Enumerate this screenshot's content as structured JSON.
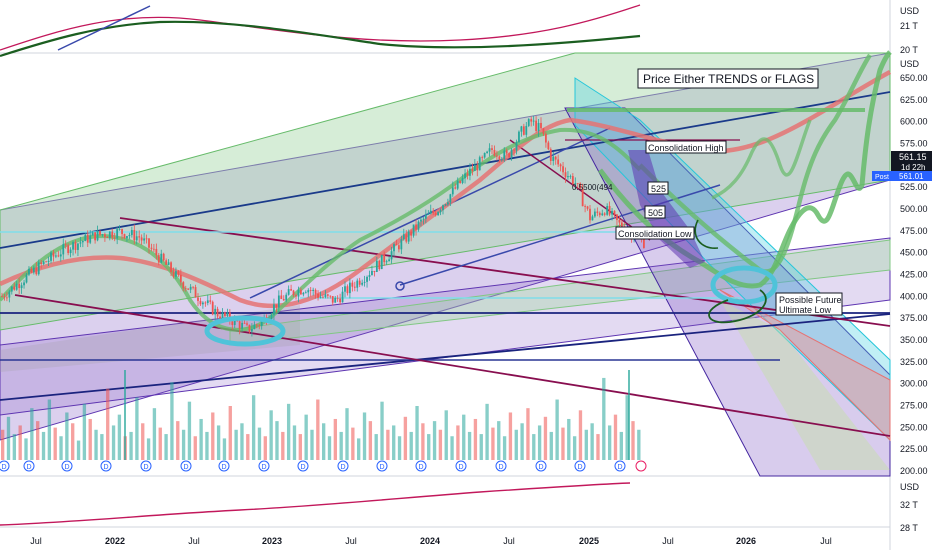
{
  "header": {
    "currency_top": "USD",
    "currency_main": "USD",
    "currency_bottom": "USD"
  },
  "top_panel": {
    "ticks": [
      "21 T",
      "20 T"
    ]
  },
  "bottom_panel": {
    "ticks": [
      "32 T",
      "28 T"
    ]
  },
  "price_badges": {
    "last": "561.15",
    "countdown": "1d 22h",
    "post_label": "Post",
    "post_value": "561.01",
    "last_value": 561.15,
    "post_numeric": 561.01
  },
  "annotations": {
    "title": "Price Either TRENDS or FLAGS",
    "consolidation_high": "Consolidation High",
    "consolidation_low": "Consolidation Low",
    "fib_level": "0.5500(494",
    "level_525": "525",
    "level_505": "505",
    "future_low_line1": "Possible Future",
    "future_low_line2": "Ultimate Low"
  },
  "event_marker": "D",
  "colors": {
    "up": "#26a69a",
    "down": "#ef5350",
    "highlight": "#4fc3d9",
    "green_path": "#66bb6a",
    "purple_fill": "#7e57c2",
    "green_fill": "#a5d6a7",
    "trend_blue": "#1a237e",
    "trend_maroon": "#880e4f",
    "ma_red": "#e57373"
  },
  "chart_data": {
    "type": "candlestick",
    "y_axis": {
      "ticks": [
        650,
        625,
        600,
        575,
        550,
        525,
        500,
        475,
        450,
        425,
        400,
        375,
        350,
        325,
        300,
        275,
        250,
        225,
        200
      ],
      "tick_labels": [
        "650.00",
        "625.00",
        "600.00",
        "575.00",
        "550.00",
        "525.00",
        "500.00",
        "475.00",
        "450.00",
        "425.00",
        "400.00",
        "375.00",
        "350.00",
        "325.00",
        "300.00",
        "275.00",
        "250.00",
        "225.00",
        "200.00"
      ],
      "ylim": [
        196,
        665
      ]
    },
    "x_axis": {
      "labels": [
        {
          "text": "Jul",
          "bold": false
        },
        {
          "text": "2022",
          "bold": true
        },
        {
          "text": "Jul",
          "bold": false
        },
        {
          "text": "2023",
          "bold": true
        },
        {
          "text": "Jul",
          "bold": false
        },
        {
          "text": "2024",
          "bold": true
        },
        {
          "text": "Jul",
          "bold": false
        },
        {
          "text": "2025",
          "bold": true
        },
        {
          "text": "Jul",
          "bold": false
        },
        {
          "text": "2026",
          "bold": true
        },
        {
          "text": "Jul",
          "bold": false
        }
      ]
    },
    "price_path": [
      [
        0,
        400
      ],
      [
        8,
        418
      ],
      [
        18,
        440
      ],
      [
        26,
        455
      ],
      [
        38,
        470
      ],
      [
        48,
        474
      ],
      [
        56,
        468
      ],
      [
        64,
        445
      ],
      [
        72,
        420
      ],
      [
        80,
        400
      ],
      [
        88,
        380
      ],
      [
        96,
        370
      ],
      [
        100,
        362
      ],
      [
        106,
        370
      ],
      [
        112,
        392
      ],
      [
        118,
        404
      ],
      [
        124,
        410
      ],
      [
        130,
        400
      ],
      [
        136,
        395
      ],
      [
        142,
        410
      ],
      [
        150,
        428
      ],
      [
        158,
        448
      ],
      [
        166,
        470
      ],
      [
        172,
        488
      ],
      [
        178,
        500
      ],
      [
        184,
        520
      ],
      [
        190,
        540
      ],
      [
        196,
        555
      ],
      [
        200,
        568
      ],
      [
        206,
        560
      ],
      [
        212,
        588
      ],
      [
        216,
        600
      ],
      [
        220,
        590
      ],
      [
        224,
        560
      ],
      [
        228,
        548
      ],
      [
        234,
        530
      ],
      [
        240,
        490
      ],
      [
        246,
        500
      ],
      [
        252,
        482
      ],
      [
        258,
        470
      ],
      [
        262,
        462
      ]
    ],
    "volume": {
      "values": [
        14,
        20,
        12,
        16,
        10,
        24,
        18,
        13,
        28,
        15,
        11,
        22,
        17,
        9,
        26,
        19,
        14,
        12,
        33,
        16,
        21,
        11,
        13,
        29,
        17,
        10,
        24,
        15,
        12,
        36,
        18,
        14,
        27,
        11,
        19,
        13,
        22,
        16,
        10,
        25,
        14,
        17,
        12,
        30,
        15,
        11,
        23,
        18,
        13,
        26,
        16,
        12,
        21,
        14,
        28,
        17,
        11,
        19,
        13,
        24,
        15,
        10,
        22,
        18,
        12,
        27,
        14,
        16,
        11,
        20,
        13,
        25,
        17,
        12,
        18,
        14,
        23,
        11,
        16,
        21,
        13,
        19,
        12,
        26,
        15,
        18,
        11,
        22,
        14,
        17,
        24,
        12,
        16,
        20,
        13,
        28,
        15,
        19,
        11,
        23,
        14,
        17,
        12,
        38,
        16,
        21,
        13,
        30,
        18,
        14
      ]
    }
  }
}
